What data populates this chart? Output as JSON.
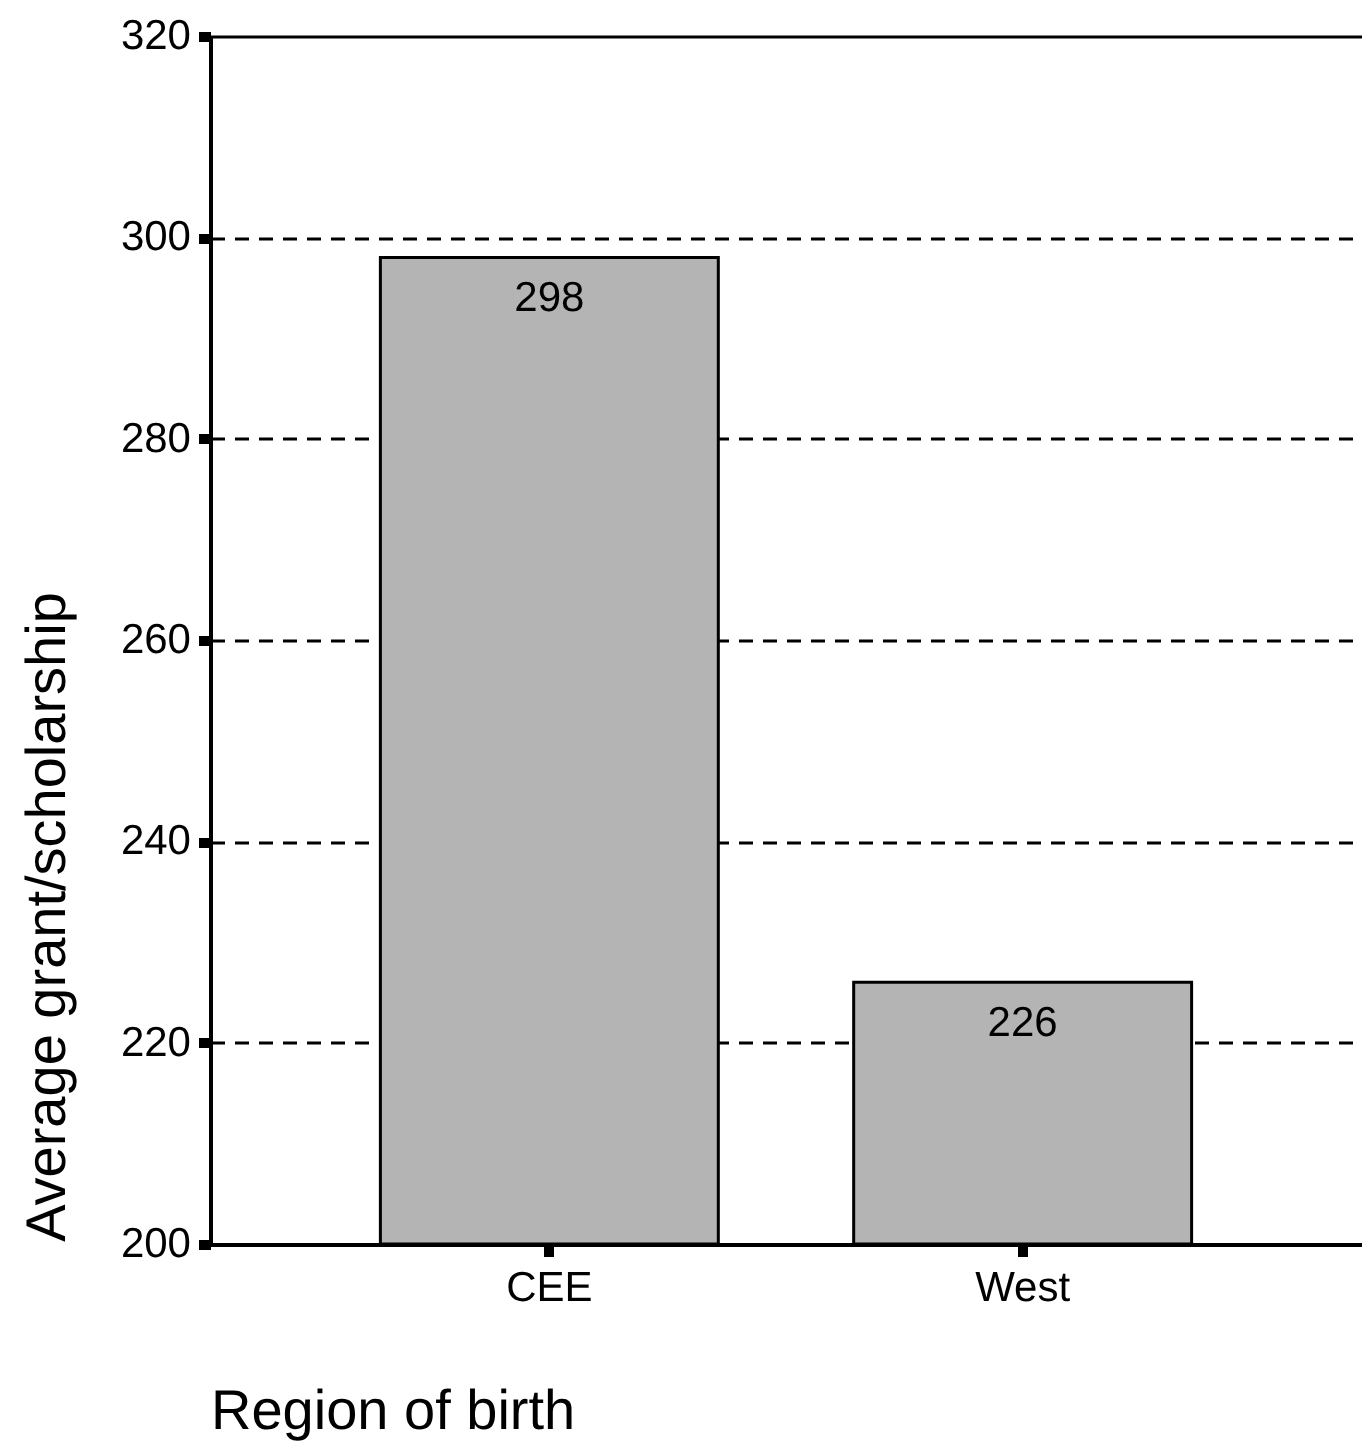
{
  "chart_data": {
    "type": "bar",
    "xlabel": "Region of birth",
    "ylabel": "Average grant/scholarship",
    "categories": [
      "CEE",
      "West"
    ],
    "values": [
      298,
      226
    ],
    "color": "#b4b4b4",
    "ylim": [
      200,
      320
    ],
    "yticks": [
      200,
      220,
      240,
      260,
      280,
      300,
      320
    ],
    "grid": "y",
    "data_labels": true
  }
}
